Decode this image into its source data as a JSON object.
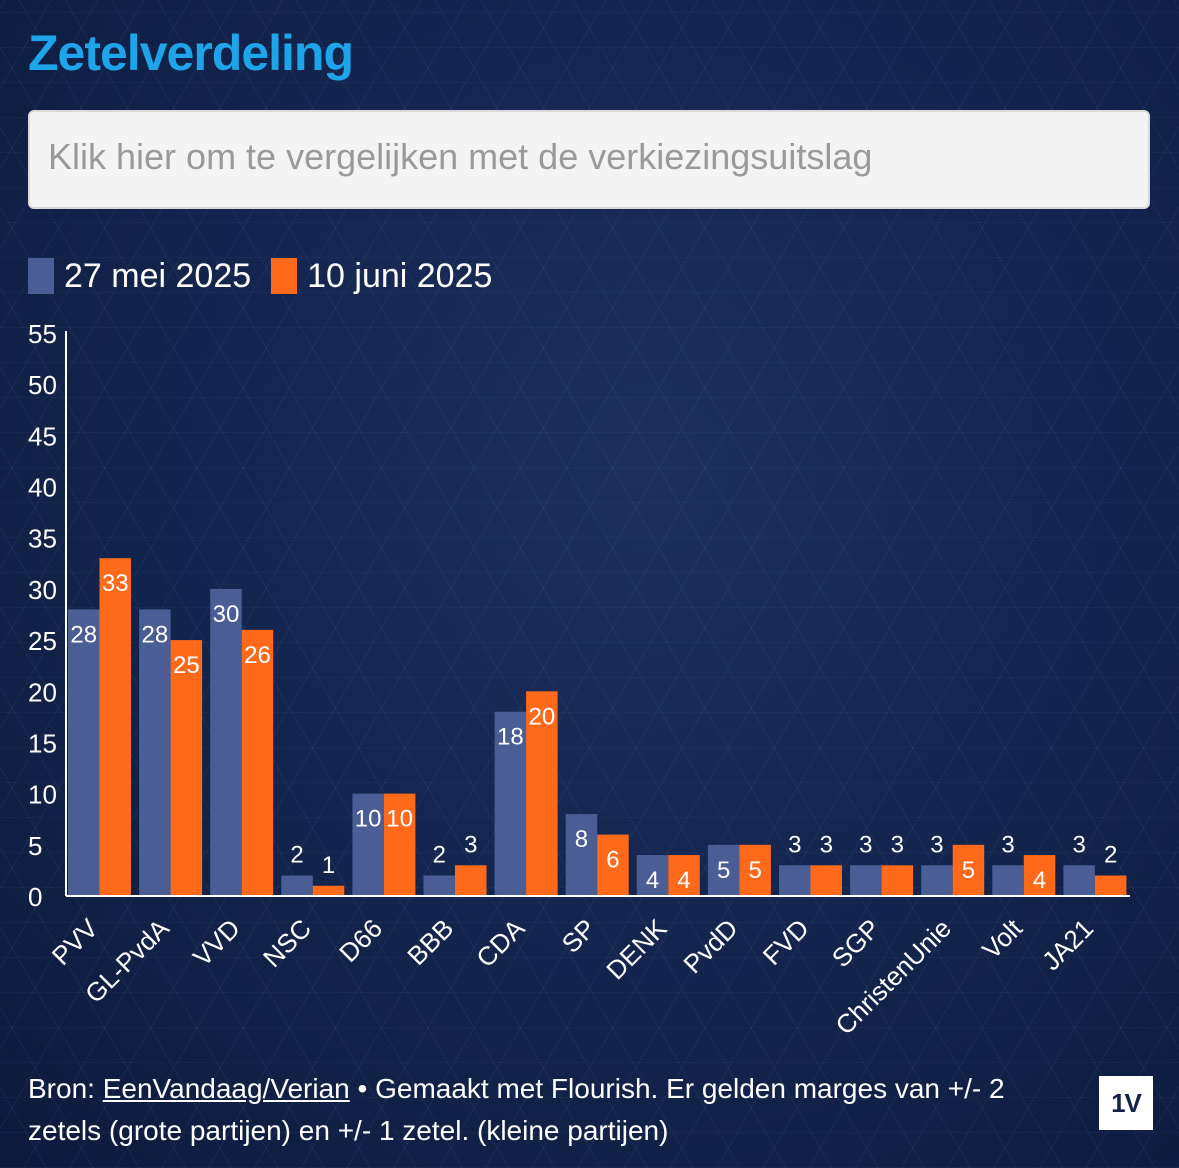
{
  "title": "Zetelverdeling",
  "compare_button": "Klik hier om te vergelijken met de verkiezingsuitslag",
  "colors": {
    "series1": "#4a5d94",
    "series2": "#ff6a1a",
    "title": "#1ea4e9"
  },
  "footer": {
    "prefix": "Bron: ",
    "source_link": "EenVandaag/Verian",
    "text": " • Gemaakt met Flourish. Er gelden marges van +/- 2 zetels (grote partijen) en +/- 1 zetel. (kleine partijen)"
  },
  "logo": "1V",
  "chart_data": {
    "type": "bar",
    "categories": [
      "PVV",
      "GL-PvdA",
      "VVD",
      "NSC",
      "D66",
      "BBB",
      "CDA",
      "SP",
      "DENK",
      "PvdD",
      "FVD",
      "SGP",
      "ChristenUnie",
      "Volt",
      "JA21"
    ],
    "series": [
      {
        "name": "27 mei 2025",
        "color": "#4a5d94",
        "values": [
          28,
          28,
          30,
          2,
          10,
          2,
          18,
          8,
          4,
          5,
          3,
          3,
          3,
          3,
          3
        ]
      },
      {
        "name": "10 juni 2025",
        "color": "#ff6a1a",
        "values": [
          33,
          25,
          26,
          1,
          10,
          3,
          20,
          6,
          4,
          5,
          3,
          3,
          5,
          4,
          2
        ]
      }
    ],
    "yticks": [
      0,
      5,
      10,
      15,
      20,
      25,
      30,
      35,
      40,
      45,
      50,
      55
    ],
    "ylim": [
      0,
      55
    ],
    "legend_position": "top-left",
    "grid": false
  }
}
